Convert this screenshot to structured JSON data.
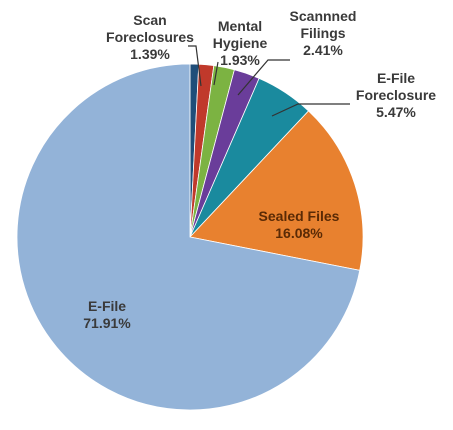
{
  "chart_data": {
    "type": "pie",
    "categories": [
      null,
      "Scan Foreclosures",
      "Mental Hygiene",
      "Scannned Filings",
      "E-File Foreclosure",
      "Sealed Files",
      "E-File"
    ],
    "values": [
      0.81,
      1.39,
      1.93,
      2.41,
      5.47,
      16.08,
      71.91
    ],
    "value_labels": [
      null,
      "1.39%",
      "1.93%",
      "2.41%",
      "5.47%",
      "16.08%",
      "71.91%"
    ],
    "colors": [
      "#1f4e79",
      "#c0392b",
      "#7cb342",
      "#6a3d9a",
      "#1a8a9e",
      "#e8812f",
      "#93b3d8"
    ]
  }
}
